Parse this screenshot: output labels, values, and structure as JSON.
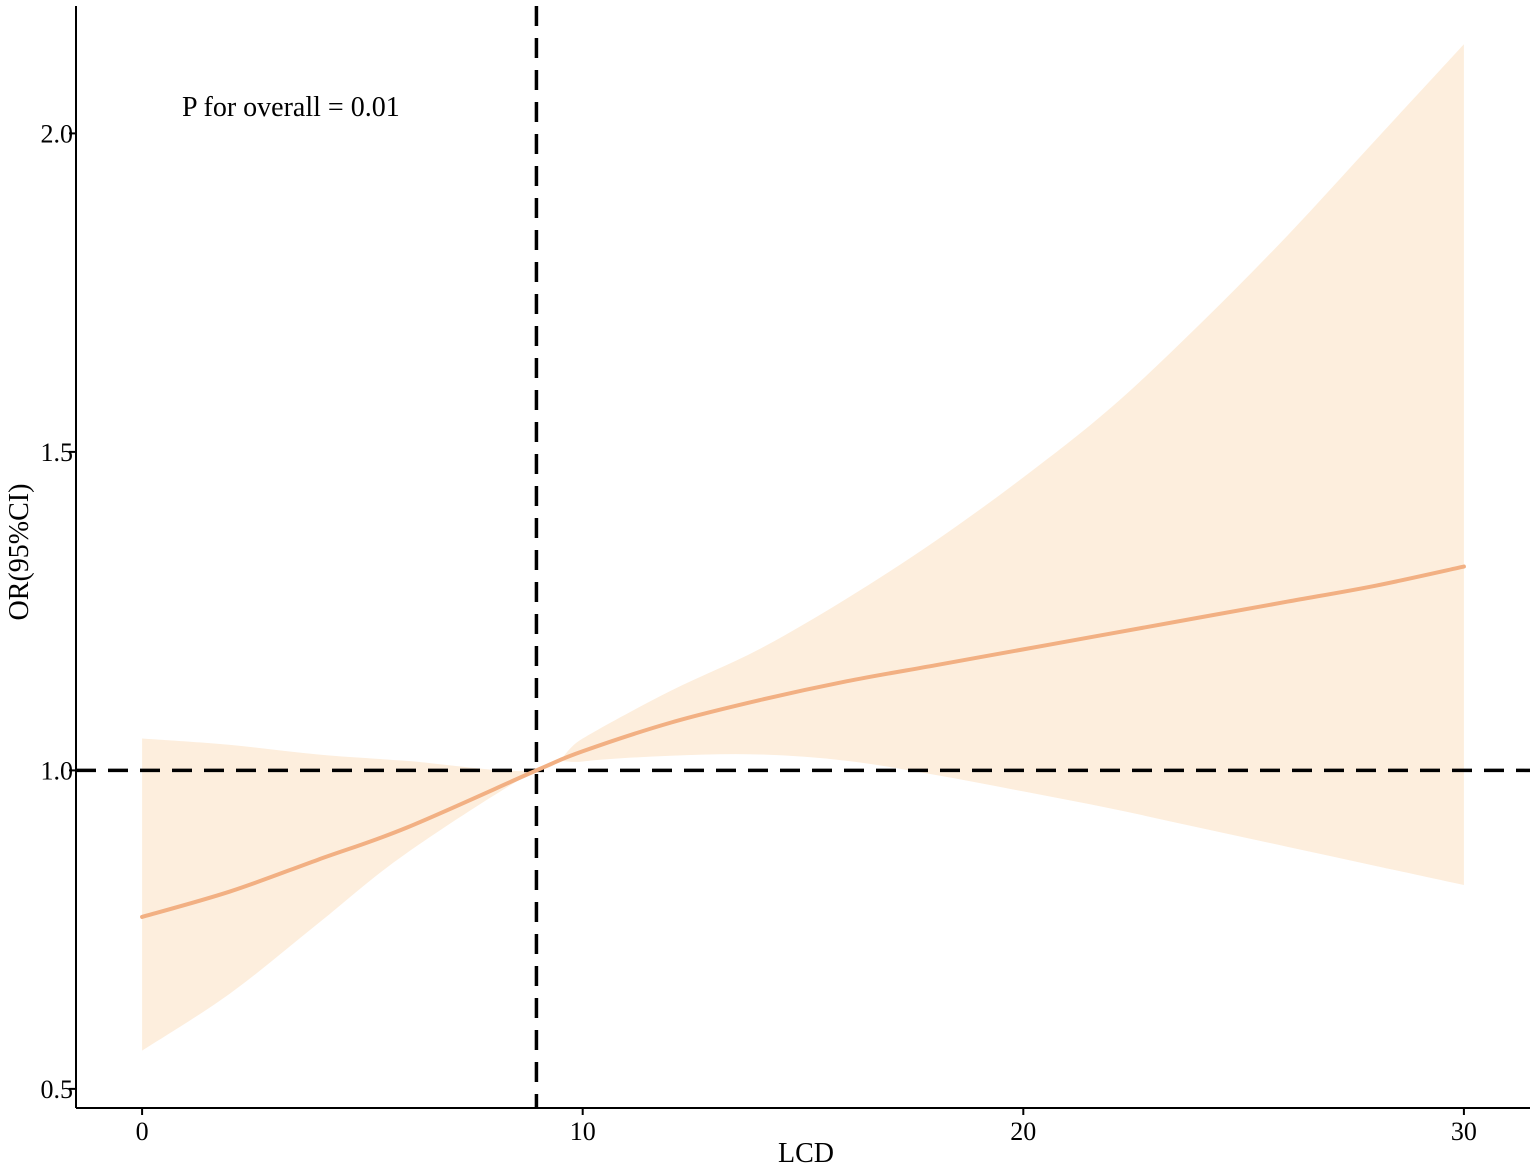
{
  "chart_data": {
    "type": "line",
    "title": "",
    "xlabel": "LCD",
    "ylabel": "OR(95%CI)",
    "xlim": [
      -1.5,
      31.5
    ],
    "ylim": [
      0.47,
      2.2
    ],
    "x_ticks": [
      0,
      10,
      20,
      30
    ],
    "y_ticks": [
      0.5,
      1.0,
      1.5,
      2.0
    ],
    "x_tick_labels": [
      "0",
      "10",
      "20",
      "30"
    ],
    "y_tick_labels": [
      "0.5",
      "1.0",
      "1.5",
      "2.0"
    ],
    "grid": false,
    "annotation": "P for overall = 0.01",
    "reference_lines": {
      "vertical_x": 8.95,
      "horizontal_y": 1.0
    },
    "colors": {
      "line": "#F2B083",
      "band": "#FDEEDD",
      "reference": "#000000",
      "axis": "#000000"
    },
    "series": [
      {
        "x": [
          0,
          2,
          4,
          6,
          8.95,
          10,
          12,
          14,
          16,
          18,
          20,
          22,
          24,
          26,
          28,
          30
        ],
        "values": [
          0.77,
          0.81,
          0.86,
          0.91,
          1.0,
          1.03,
          1.075,
          1.11,
          1.14,
          1.165,
          1.19,
          1.215,
          1.24,
          1.265,
          1.29,
          1.32
        ],
        "lower": [
          0.56,
          0.65,
          0.76,
          0.87,
          1.0,
          1.014,
          1.023,
          1.025,
          1.015,
          0.993,
          0.967,
          0.94,
          0.91,
          0.88,
          0.85,
          0.82
        ],
        "upper": [
          1.05,
          1.04,
          1.025,
          1.015,
          1.0,
          1.05,
          1.125,
          1.19,
          1.27,
          1.36,
          1.46,
          1.57,
          1.7,
          1.84,
          1.99,
          2.14
        ]
      }
    ]
  }
}
